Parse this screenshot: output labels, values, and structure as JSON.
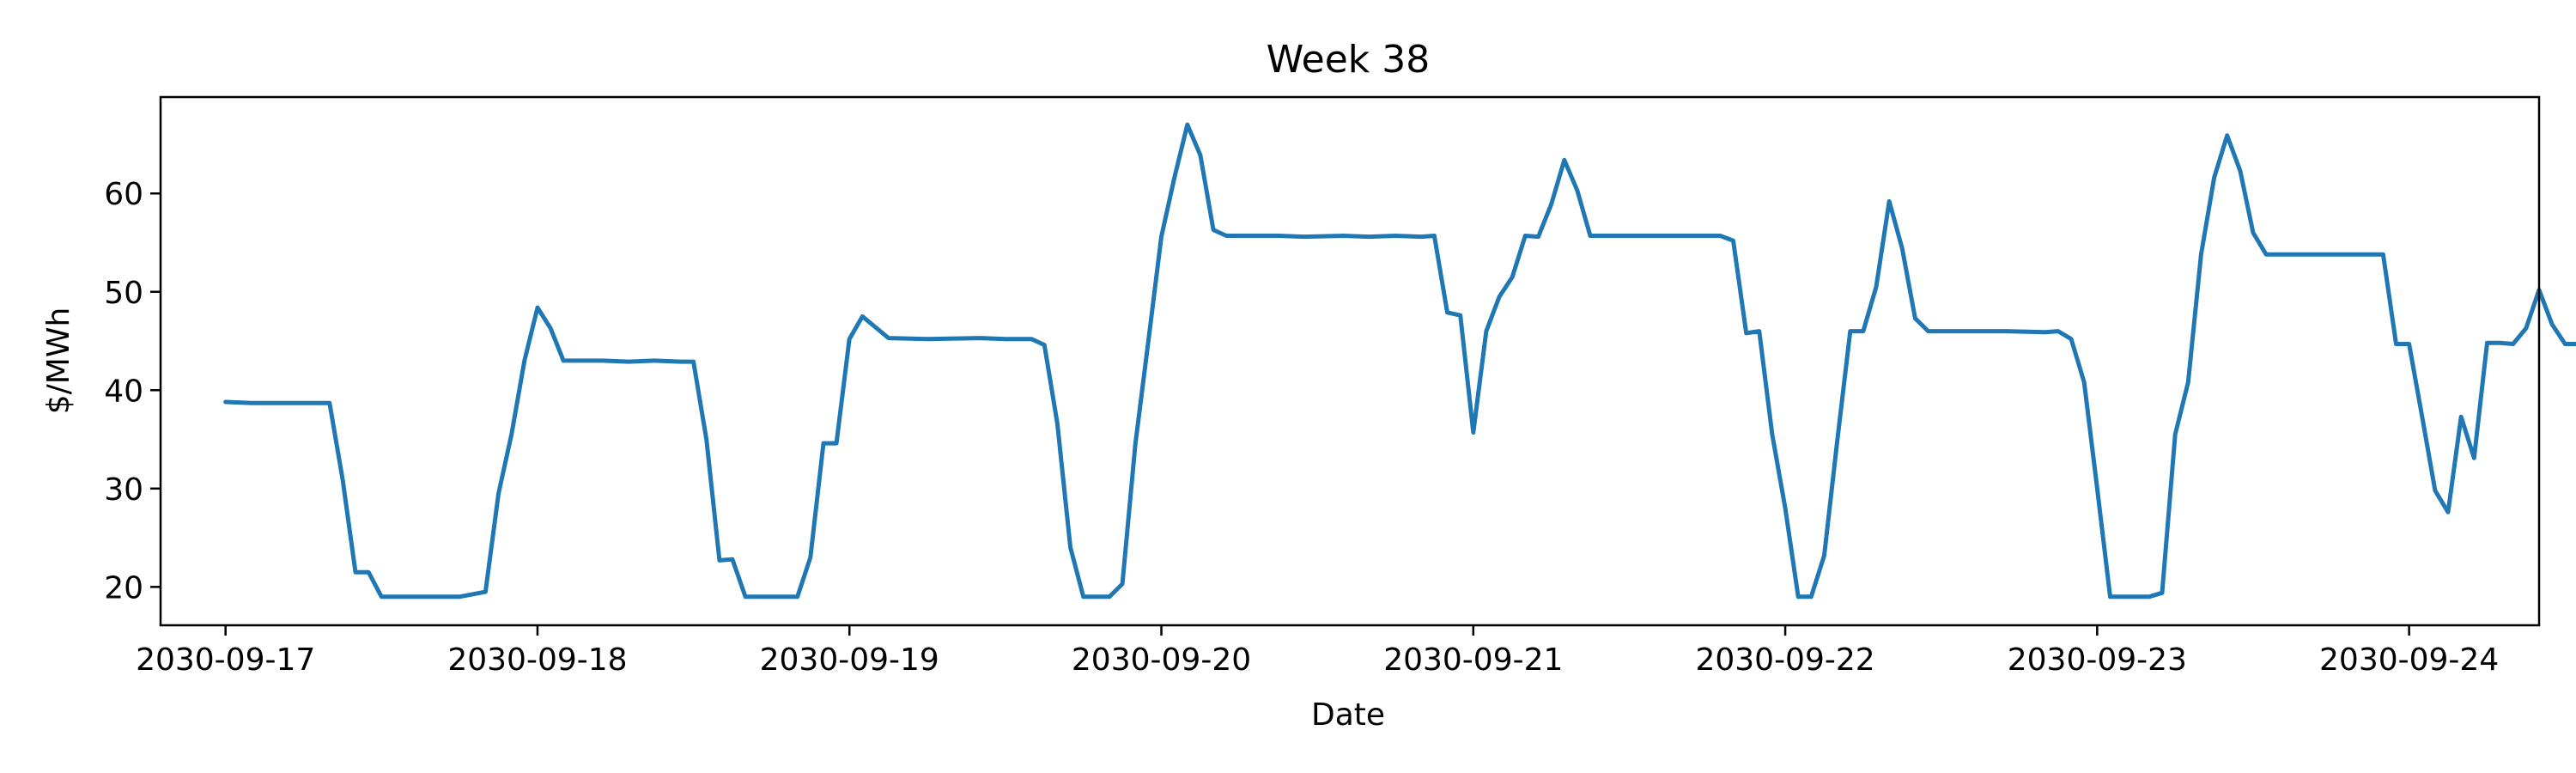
{
  "chart_data": {
    "type": "line",
    "title": "Week 38",
    "xlabel": "Date",
    "ylabel": "$/MWh",
    "x_range": [
      "2030-09-16T19:00",
      "2030-09-24T10:00"
    ],
    "ylim": [
      16.1,
      69.8
    ],
    "yticks": [
      20,
      30,
      40,
      50,
      60
    ],
    "xticks": [
      "2030-09-17",
      "2030-09-18",
      "2030-09-19",
      "2030-09-20",
      "2030-09-21",
      "2030-09-22",
      "2030-09-23",
      "2030-09-24"
    ],
    "grid": false,
    "series": [
      {
        "color": "#1f77b4",
        "points": [
          [
            "2030-09-17T00:00",
            38.8
          ],
          [
            "2030-09-17T02:00",
            38.7
          ],
          [
            "2030-09-17T04:00",
            38.7
          ],
          [
            "2030-09-17T06:00",
            38.7
          ],
          [
            "2030-09-17T08:00",
            38.7
          ],
          [
            "2030-09-17T09:00",
            31.0
          ],
          [
            "2030-09-17T10:00",
            21.5
          ],
          [
            "2030-09-17T11:00",
            21.5
          ],
          [
            "2030-09-17T12:00",
            19.0
          ],
          [
            "2030-09-17T14:00",
            19.0
          ],
          [
            "2030-09-17T16:00",
            19.0
          ],
          [
            "2030-09-17T18:00",
            19.0
          ],
          [
            "2030-09-17T20:00",
            19.5
          ],
          [
            "2030-09-17T21:00",
            29.5
          ],
          [
            "2030-09-17T22:00",
            35.5
          ],
          [
            "2030-09-17T23:00",
            43.0
          ],
          [
            "2030-09-18T00:00",
            48.4
          ],
          [
            "2030-09-18T01:00",
            46.3
          ],
          [
            "2030-09-18T02:00",
            43.0
          ],
          [
            "2030-09-18T05:00",
            43.0
          ],
          [
            "2030-09-18T07:00",
            42.9
          ],
          [
            "2030-09-18T09:00",
            43.0
          ],
          [
            "2030-09-18T11:00",
            42.9
          ],
          [
            "2030-09-18T12:00",
            42.9
          ],
          [
            "2030-09-18T13:00",
            35.0
          ],
          [
            "2030-09-18T14:00",
            22.7
          ],
          [
            "2030-09-18T15:00",
            22.8
          ],
          [
            "2030-09-18T16:00",
            19.0
          ],
          [
            "2030-09-18T20:00",
            19.0
          ],
          [
            "2030-09-18T21:00",
            23.0
          ],
          [
            "2030-09-18T22:00",
            34.6
          ],
          [
            "2030-09-18T23:00",
            34.6
          ],
          [
            "2030-09-19T00:00",
            45.2
          ],
          [
            "2030-09-19T01:00",
            47.5
          ],
          [
            "2030-09-19T03:00",
            45.3
          ],
          [
            "2030-09-19T06:00",
            45.2
          ],
          [
            "2030-09-19T10:00",
            45.3
          ],
          [
            "2030-09-19T12:00",
            45.2
          ],
          [
            "2030-09-19T14:00",
            45.2
          ],
          [
            "2030-09-19T15:00",
            44.6
          ],
          [
            "2030-09-19T16:00",
            36.6
          ],
          [
            "2030-09-19T17:00",
            24.0
          ],
          [
            "2030-09-19T18:00",
            19.0
          ],
          [
            "2030-09-19T20:00",
            19.0
          ],
          [
            "2030-09-19T21:00",
            20.3
          ],
          [
            "2030-09-19T22:00",
            34.5
          ],
          [
            "2030-09-19T23:00",
            45.0
          ],
          [
            "2030-09-20T00:00",
            55.6
          ],
          [
            "2030-09-20T01:00",
            61.6
          ],
          [
            "2030-09-20T02:00",
            67.0
          ],
          [
            "2030-09-20T03:00",
            63.9
          ],
          [
            "2030-09-20T04:00",
            56.3
          ],
          [
            "2030-09-20T05:00",
            55.7
          ],
          [
            "2030-09-20T09:00",
            55.7
          ],
          [
            "2030-09-20T11:00",
            55.6
          ],
          [
            "2030-09-20T14:00",
            55.7
          ],
          [
            "2030-09-20T16:00",
            55.6
          ],
          [
            "2030-09-20T18:00",
            55.7
          ],
          [
            "2030-09-20T20:00",
            55.6
          ],
          [
            "2030-09-20T21:00",
            55.7
          ],
          [
            "2030-09-20T22:00",
            47.9
          ],
          [
            "2030-09-20T23:00",
            47.6
          ],
          [
            "2030-09-21T00:00",
            35.7
          ],
          [
            "2030-09-21T01:00",
            46.0
          ],
          [
            "2030-09-21T02:00",
            49.5
          ],
          [
            "2030-09-21T03:00",
            51.5
          ],
          [
            "2030-09-21T04:00",
            55.7
          ],
          [
            "2030-09-21T05:00",
            55.6
          ],
          [
            "2030-09-21T06:00",
            58.9
          ],
          [
            "2030-09-21T07:00",
            63.4
          ],
          [
            "2030-09-21T08:00",
            60.3
          ],
          [
            "2030-09-21T09:00",
            55.7
          ],
          [
            "2030-09-21T12:00",
            55.7
          ],
          [
            "2030-09-21T15:00",
            55.7
          ],
          [
            "2030-09-21T18:00",
            55.7
          ],
          [
            "2030-09-21T19:00",
            55.7
          ],
          [
            "2030-09-21T20:00",
            55.2
          ],
          [
            "2030-09-21T21:00",
            45.8
          ],
          [
            "2030-09-21T22:00",
            46.0
          ],
          [
            "2030-09-21T23:00",
            35.5
          ],
          [
            "2030-09-22T00:00",
            28.0
          ],
          [
            "2030-09-22T01:00",
            19.0
          ],
          [
            "2030-09-22T02:00",
            19.0
          ],
          [
            "2030-09-22T03:00",
            23.2
          ],
          [
            "2030-09-22T04:00",
            34.8
          ],
          [
            "2030-09-22T05:00",
            46.0
          ],
          [
            "2030-09-22T06:00",
            46.0
          ],
          [
            "2030-09-22T07:00",
            50.5
          ],
          [
            "2030-09-22T08:00",
            59.2
          ],
          [
            "2030-09-22T09:00",
            54.4
          ],
          [
            "2030-09-22T10:00",
            47.3
          ],
          [
            "2030-09-22T11:00",
            46.0
          ],
          [
            "2030-09-22T14:00",
            46.0
          ],
          [
            "2030-09-22T17:00",
            46.0
          ],
          [
            "2030-09-22T20:00",
            45.9
          ],
          [
            "2030-09-22T21:00",
            46.0
          ],
          [
            "2030-09-22T22:00",
            45.2
          ],
          [
            "2030-09-22T23:00",
            40.8
          ],
          [
            "2030-09-23T00:00",
            30.0
          ],
          [
            "2030-09-23T01:00",
            19.0
          ],
          [
            "2030-09-23T04:00",
            19.0
          ],
          [
            "2030-09-23T05:00",
            19.4
          ],
          [
            "2030-09-23T06:00",
            35.5
          ],
          [
            "2030-09-23T07:00",
            40.8
          ],
          [
            "2030-09-23T08:00",
            53.8
          ],
          [
            "2030-09-23T09:00",
            61.6
          ],
          [
            "2030-09-23T10:00",
            65.9
          ],
          [
            "2030-09-23T11:00",
            62.3
          ],
          [
            "2030-09-23T12:00",
            56.0
          ],
          [
            "2030-09-23T13:00",
            53.8
          ],
          [
            "2030-09-23T16:00",
            53.8
          ],
          [
            "2030-09-23T19:00",
            53.8
          ],
          [
            "2030-09-23T21:00",
            53.8
          ],
          [
            "2030-09-23T22:00",
            53.8
          ],
          [
            "2030-09-23T23:00",
            44.7
          ],
          [
            "2030-09-24T00:00",
            44.7
          ],
          [
            "2030-09-24T01:00",
            37.3
          ],
          [
            "2030-09-24T02:00",
            29.8
          ],
          [
            "2030-09-24T03:00",
            27.6
          ],
          [
            "2030-09-24T04:00",
            37.3
          ],
          [
            "2030-09-24T05:00",
            33.1
          ],
          [
            "2030-09-24T06:00",
            44.8
          ],
          [
            "2030-09-24T07:00",
            44.8
          ],
          [
            "2030-09-24T08:00",
            44.7
          ],
          [
            "2030-09-24T09:00",
            46.3
          ],
          [
            "2030-09-24T10:00",
            50.2
          ],
          [
            "2030-09-24T11:00",
            46.7
          ],
          [
            "2030-09-24T12:00",
            44.7
          ],
          [
            "2030-09-24T14:00",
            44.7
          ],
          [
            "2030-09-24T16:00",
            44.7
          ],
          [
            "2030-09-24T17:00",
            44.7
          ]
        ]
      }
    ]
  }
}
